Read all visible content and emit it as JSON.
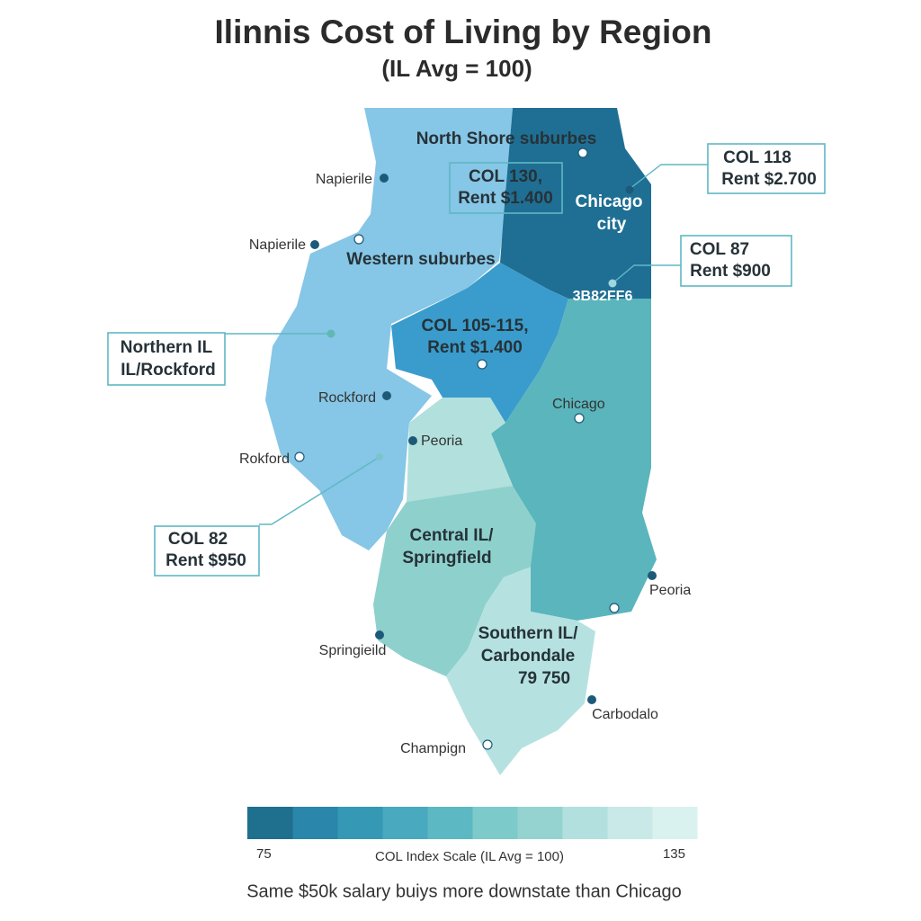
{
  "title": "Ilinnis Cost of Living by Region",
  "subtitle": "(IL Avg = 100)",
  "region_labels": {
    "north_shore": "North Shore suburbes",
    "chicago": [
      "Chicago",
      "city"
    ],
    "western": "Western suburbes",
    "code": "3B82FF6",
    "central": [
      "Central IL/",
      "Springfield"
    ],
    "southern": [
      "Southern IL/",
      "Carbondale",
      "79 750"
    ]
  },
  "callouts": [
    [
      "COL 130,",
      "Rent $1.400"
    ],
    [
      "COL 118",
      "Rent $2.700"
    ],
    [
      "COL 87",
      "Rent $900"
    ],
    [
      "COL 105-115,",
      "Rent $1.400"
    ],
    [
      "Northern IL",
      "IL/Rockford"
    ],
    [
      "COL 82",
      "Rent $950"
    ]
  ],
  "cities": [
    "Napierile",
    "Napierile",
    "Rockford",
    "Rokford",
    "Peoria",
    "Chicago",
    "Peoria",
    "Springieild",
    "Carbodalo",
    "Champign"
  ],
  "legend": {
    "min": 75,
    "max": 135,
    "title": "COL Index Scale (IL Avg = 100)",
    "colors": [
      "#1f6f8f",
      "#2a86aa",
      "#3598b4",
      "#49a9bf",
      "#5cb8c2",
      "#7ccbca",
      "#95d3d1",
      "#b2e0de",
      "#c8e9e7",
      "#daf2ef"
    ]
  },
  "footer": "Same $50k salary buiys more downstate than Chicago"
}
